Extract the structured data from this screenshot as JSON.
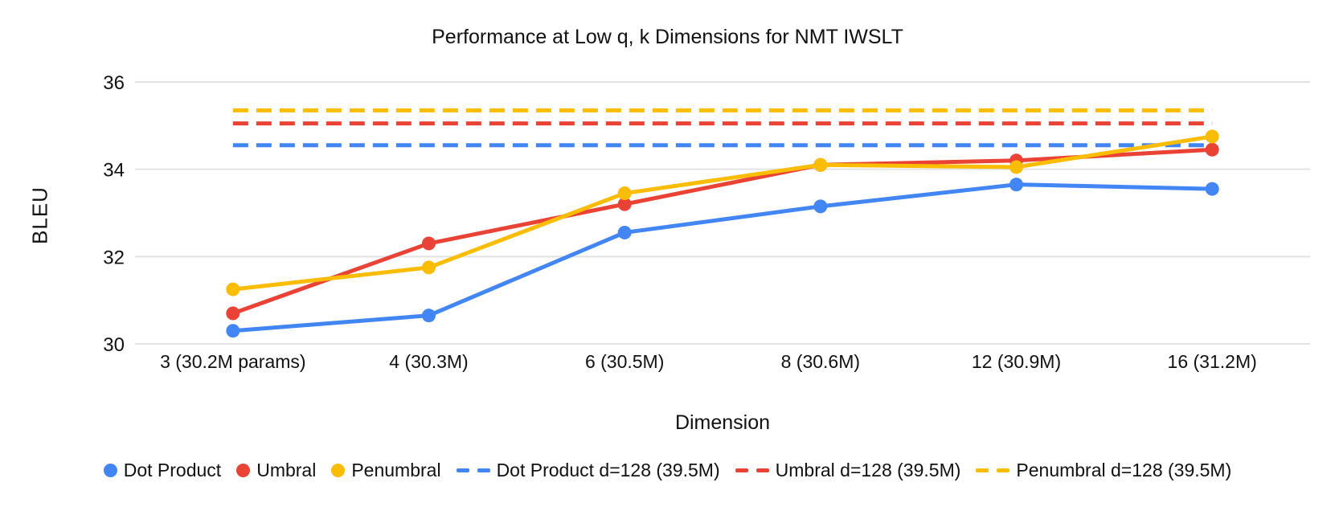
{
  "chart_data": {
    "type": "line",
    "title": "Performance at Low q, k Dimensions for NMT IWSLT",
    "xlabel": "Dimension",
    "ylabel": "BLEU",
    "categories": [
      "3 (30.2M params)",
      "4 (30.3M)",
      "6 (30.5M)",
      "8 (30.6M)",
      "12 (30.9M)",
      "16 (31.2M)"
    ],
    "ylim": [
      30,
      36
    ],
    "yticks": [
      30,
      32,
      34,
      36
    ],
    "grid": "horizontal",
    "legend_position": "bottom",
    "series": [
      {
        "name": "Dot Product",
        "color": "#4285F4",
        "style": "solid",
        "values": [
          30.3,
          30.65,
          32.55,
          33.15,
          33.65,
          33.55
        ]
      },
      {
        "name": "Umbral",
        "color": "#EA4335",
        "style": "solid",
        "values": [
          30.7,
          32.3,
          33.2,
          34.1,
          34.2,
          34.45
        ]
      },
      {
        "name": "Penumbral",
        "color": "#FBBC04",
        "style": "solid",
        "values": [
          31.25,
          31.75,
          33.45,
          34.1,
          34.05,
          34.75
        ]
      }
    ],
    "reference_lines": [
      {
        "name": "Dot Product d=128 (39.5M)",
        "color": "#4285F4",
        "style": "dashed",
        "value": 34.55
      },
      {
        "name": "Umbral d=128 (39.5M)",
        "color": "#EA4335",
        "style": "dashed",
        "value": 35.05
      },
      {
        "name": "Penumbral d=128 (39.5M)",
        "color": "#FBBC04",
        "style": "dashed",
        "value": 35.35
      }
    ]
  }
}
